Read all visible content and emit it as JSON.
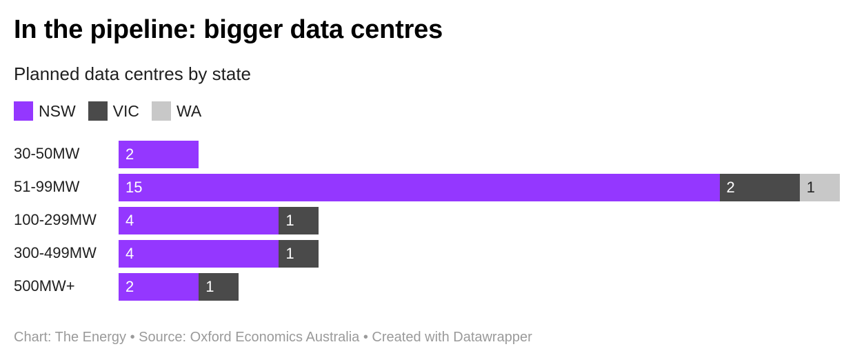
{
  "title": "In the pipeline: bigger data centres",
  "subtitle": "Planned data centres by state",
  "footer": "Chart: The Energy • Source: Oxford Economics Australia • Created with Datawrapper",
  "colors": {
    "NSW": "#9437ff",
    "VIC": "#4a4a4a",
    "WA": "#c8c8c8"
  },
  "chart_data": {
    "type": "bar",
    "orientation": "horizontal",
    "stacked": true,
    "title": "In the pipeline: bigger data centres",
    "subtitle": "Planned data centres by state",
    "legend_position": "top-left",
    "categories": [
      "30-50MW",
      "51-99MW",
      "100-299MW",
      "300-499MW",
      "500MW+"
    ],
    "series": [
      {
        "name": "NSW",
        "values": [
          2,
          15,
          4,
          4,
          2
        ]
      },
      {
        "name": "VIC",
        "values": [
          0,
          2,
          1,
          1,
          1
        ]
      },
      {
        "name": "WA",
        "values": [
          0,
          1,
          0,
          0,
          0
        ]
      }
    ],
    "xlim": [
      0,
      18
    ]
  }
}
